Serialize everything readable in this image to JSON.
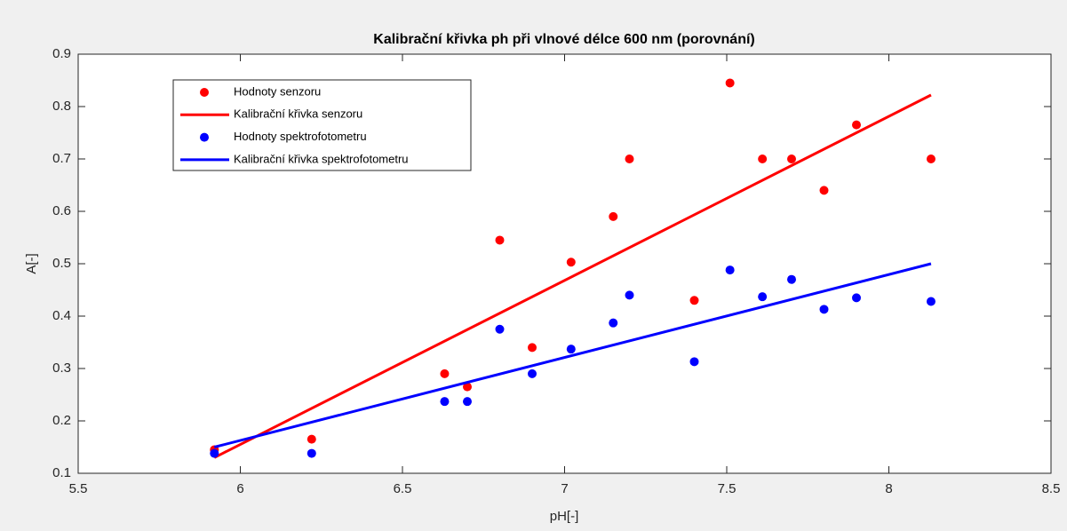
{
  "chart_data": {
    "type": "scatter",
    "title": "Kalibrační křivka ph při vlnové délce 600 nm (porovnání)",
    "xlabel": "pH[-]",
    "ylabel": "A[-]",
    "xlim": [
      5.5,
      8.5
    ],
    "xticks": [
      5.5,
      6,
      6.5,
      7,
      7.5,
      8,
      8.5
    ],
    "ylim": [
      0.1,
      0.9
    ],
    "yticks": [
      0.1,
      0.2,
      0.3,
      0.4,
      0.5,
      0.6,
      0.7,
      0.8,
      0.9
    ],
    "grid": false,
    "legend": "upper left",
    "series": [
      {
        "name": "Hodnoty senzoru",
        "color": "#ff0000",
        "mode": "markers",
        "x": [
          5.92,
          6.22,
          6.63,
          6.7,
          6.8,
          6.9,
          7.02,
          7.15,
          7.2,
          7.4,
          7.51,
          7.61,
          7.7,
          7.8,
          7.9,
          8.13
        ],
        "values": [
          0.145,
          0.165,
          0.29,
          0.265,
          0.545,
          0.34,
          0.503,
          0.59,
          0.7,
          0.43,
          0.845,
          0.7,
          0.7,
          0.64,
          0.765,
          0.7
        ]
      },
      {
        "name": "Kalibrační křivka senzoru",
        "color": "#ff0000",
        "mode": "line",
        "x": [
          5.92,
          8.13
        ],
        "values": [
          0.13,
          0.822
        ]
      },
      {
        "name": "Hodnoty spektrofotometru",
        "color": "#0000ff",
        "mode": "markers",
        "x": [
          5.92,
          6.22,
          6.63,
          6.7,
          6.8,
          6.9,
          7.02,
          7.15,
          7.2,
          7.4,
          7.51,
          7.61,
          7.7,
          7.8,
          7.9,
          8.13
        ],
        "values": [
          0.138,
          0.138,
          0.237,
          0.237,
          0.375,
          0.29,
          0.337,
          0.387,
          0.44,
          0.313,
          0.488,
          0.437,
          0.47,
          0.413,
          0.435,
          0.428
        ]
      },
      {
        "name": "Kalibrační křivka spektrofotometru",
        "color": "#0000ff",
        "mode": "line",
        "x": [
          5.92,
          8.13
        ],
        "values": [
          0.15,
          0.5
        ]
      }
    ]
  }
}
